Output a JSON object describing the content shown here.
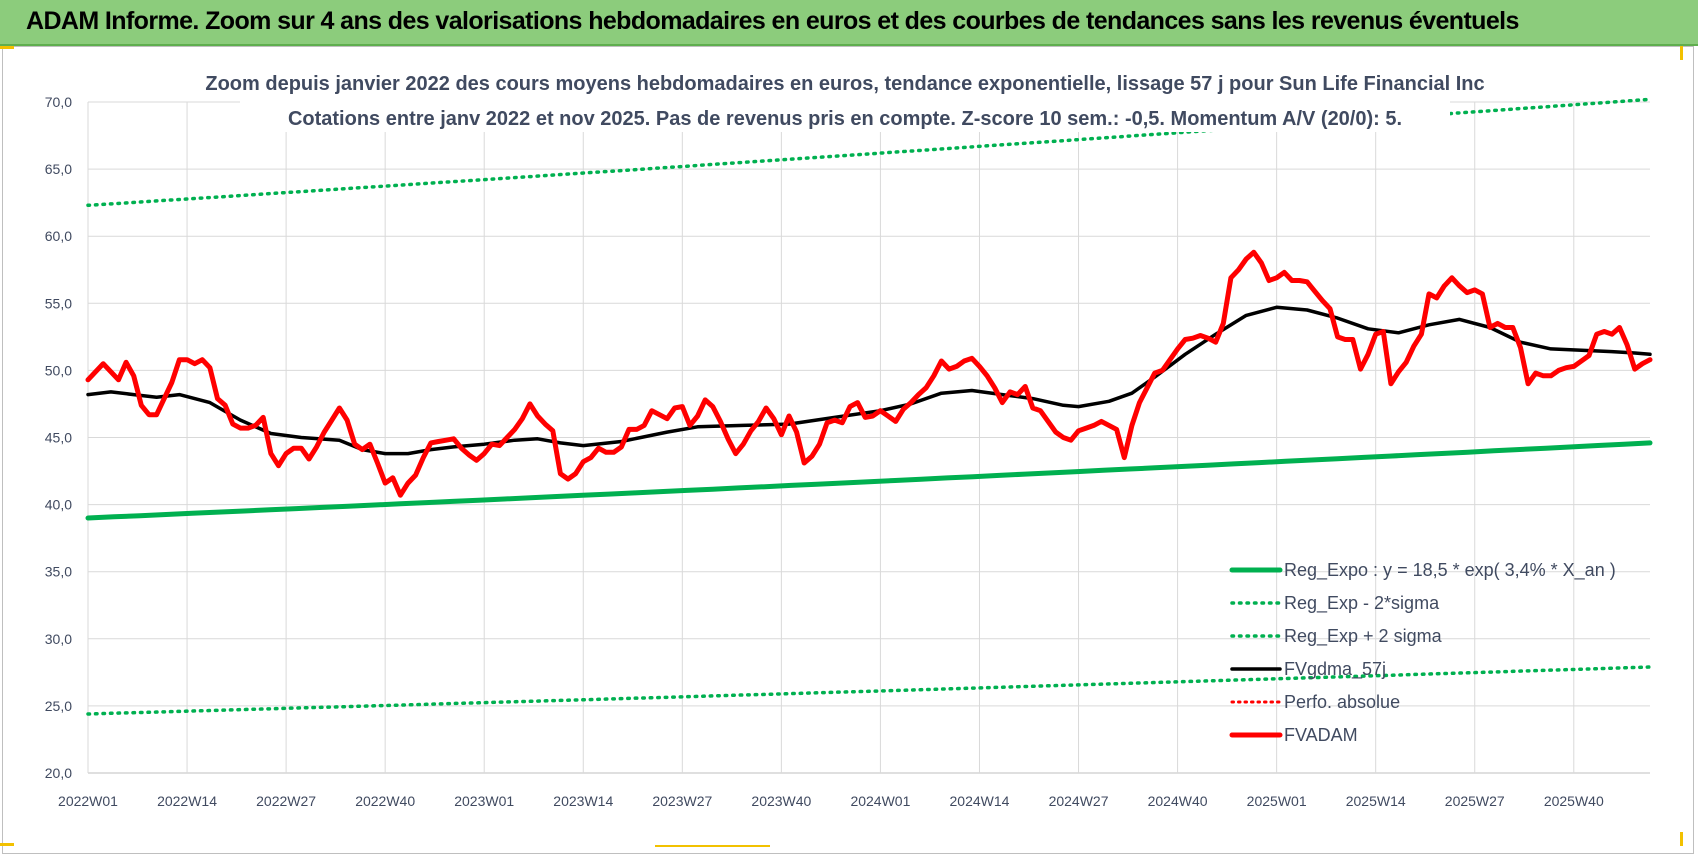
{
  "banner": {
    "title": "ADAM Informe. Zoom sur 4 ans des valorisations hebdomadaires en euros et des courbes de tendances sans les revenus éventuels"
  },
  "colors": {
    "banner_bg": "#8ccc7c",
    "reg_expo": "#00b050",
    "gdma": "#000000",
    "fvadam": "#ff0000",
    "perfo": "#ff0000",
    "grid": "#d9d9d9"
  },
  "chart_data": {
    "type": "line",
    "title": "Zoom depuis janvier 2022 des cours moyens hebdomadaires en euros, tendance exponentielle, lissage 57 j pour Sun Life Financial Inc",
    "subtitle": "Cotations entre janv 2022 et nov 2025. Pas de revenus pris en compte. Z-score 10 sem.: -0,5. Momentum A/V (20/0): 5.",
    "xlabel": "",
    "ylabel": "",
    "ylim": [
      20,
      70
    ],
    "y_ticks": [
      "20,0",
      "25,0",
      "30,0",
      "35,0",
      "40,0",
      "45,0",
      "50,0",
      "55,0",
      "60,0",
      "65,0",
      "70,0"
    ],
    "x_ticks": [
      "2022W01",
      "2022W14",
      "2022W27",
      "2022W40",
      "2023W01",
      "2023W14",
      "2023W27",
      "2023W40",
      "2024W01",
      "2024W14",
      "2024W27",
      "2024W40",
      "2025W01",
      "2025W14",
      "2025W27",
      "2025W40"
    ],
    "x_tick_index": [
      0,
      13,
      26,
      39,
      52,
      65,
      78,
      91,
      104,
      117,
      130,
      143,
      156,
      169,
      182,
      195
    ],
    "n_weeks": 206,
    "grid": true,
    "legend_position": "bottom-right",
    "series": [
      {
        "name": "Reg_Expo : y = 18,5 * exp( 3,4% *  X_an )",
        "style": "solid-thick",
        "x": [
          0,
          205
        ],
        "values": [
          39.0,
          44.6
        ]
      },
      {
        "name": "Reg_Exp - 2*sigma",
        "style": "dotted",
        "x": [
          0,
          205
        ],
        "values": [
          24.4,
          27.9
        ]
      },
      {
        "name": "Reg_Exp + 2 sigma",
        "style": "dotted",
        "x": [
          0,
          205
        ],
        "values": [
          62.3,
          70.2
        ]
      },
      {
        "name": "FVgdma_57j",
        "style": "solid",
        "x": [
          0,
          3,
          6,
          9,
          12,
          16,
          20,
          24,
          28,
          33,
          36,
          39,
          42,
          45,
          48,
          52,
          56,
          59,
          62,
          65,
          70,
          76,
          80,
          86,
          92,
          98,
          104,
          108,
          112,
          116,
          120,
          124,
          128,
          130,
          134,
          137,
          140,
          144,
          148,
          152,
          156,
          160,
          164,
          168,
          172,
          176,
          180,
          184,
          188,
          192,
          196,
          200,
          203,
          205
        ],
        "values": [
          48.2,
          48.4,
          48.2,
          48.0,
          48.2,
          47.6,
          46.3,
          45.3,
          45.0,
          44.8,
          44.1,
          43.8,
          43.8,
          44.1,
          44.3,
          44.5,
          44.8,
          44.9,
          44.6,
          44.4,
          44.7,
          45.4,
          45.8,
          45.9,
          46.0,
          46.5,
          47.0,
          47.5,
          48.3,
          48.5,
          48.2,
          47.9,
          47.4,
          47.3,
          47.7,
          48.3,
          49.5,
          51.2,
          52.7,
          54.1,
          54.7,
          54.5,
          53.9,
          53.1,
          52.8,
          53.4,
          53.8,
          53.2,
          52.1,
          51.6,
          51.5,
          51.4,
          51.3,
          51.2
        ]
      },
      {
        "name": "Perfo. absolue",
        "style": "dotted",
        "x": [],
        "values": []
      },
      {
        "name": "FVADAM",
        "style": "solid-thick",
        "x": [
          0,
          2,
          4,
          5,
          6,
          7,
          8,
          9,
          10,
          11,
          12,
          13,
          14,
          15,
          16,
          17,
          18,
          19,
          20,
          21,
          22,
          23,
          24,
          25,
          26,
          27,
          28,
          29,
          30,
          31,
          32,
          33,
          34,
          35,
          36,
          37,
          38,
          39,
          40,
          41,
          42,
          43,
          44,
          45,
          46,
          47,
          48,
          49,
          50,
          51,
          52,
          53,
          54,
          55,
          56,
          57,
          58,
          59,
          60,
          61,
          62,
          63,
          64,
          65,
          66,
          67,
          68,
          69,
          70,
          71,
          72,
          73,
          74,
          75,
          76,
          77,
          78,
          79,
          80,
          81,
          82,
          83,
          84,
          85,
          86,
          87,
          88,
          89,
          90,
          91,
          92,
          93,
          94,
          95,
          96,
          97,
          98,
          99,
          100,
          101,
          102,
          103,
          104,
          105,
          106,
          107,
          108,
          109,
          110,
          111,
          112,
          113,
          114,
          115,
          116,
          117,
          118,
          119,
          120,
          121,
          122,
          123,
          124,
          125,
          126,
          127,
          128,
          129,
          130,
          131,
          132,
          133,
          134,
          135,
          136,
          137,
          138,
          139,
          140,
          141,
          142,
          143,
          144,
          145,
          146,
          147,
          148,
          149,
          150,
          151,
          152,
          153,
          154,
          155,
          156,
          157,
          158,
          159,
          160,
          161,
          162,
          163,
          164,
          165,
          166,
          167,
          168,
          169,
          170,
          171,
          172,
          173,
          174,
          175,
          176,
          177,
          178,
          179,
          180,
          181,
          182,
          183,
          184,
          185,
          186,
          187,
          188,
          189,
          190,
          191,
          192,
          193,
          194,
          195,
          196,
          197,
          198,
          199,
          200,
          201,
          202,
          203,
          204,
          205
        ],
        "values": [
          49.3,
          50.5,
          49.3,
          50.6,
          49.6,
          47.4,
          46.7,
          46.7,
          47.9,
          49.1,
          50.8,
          50.8,
          50.5,
          50.8,
          50.2,
          47.9,
          47.4,
          46.0,
          45.7,
          45.7,
          45.9,
          46.5,
          43.8,
          42.9,
          43.8,
          44.2,
          44.2,
          43.4,
          44.3,
          45.4,
          46.3,
          47.2,
          46.3,
          44.5,
          44.1,
          44.5,
          43.1,
          41.6,
          42.0,
          40.7,
          41.6,
          42.2,
          43.5,
          44.6,
          44.7,
          44.8,
          44.9,
          44.2,
          43.7,
          43.3,
          43.8,
          44.5,
          44.4,
          45.0,
          45.6,
          46.4,
          47.5,
          46.6,
          46.0,
          45.5,
          42.3,
          41.9,
          42.3,
          43.2,
          43.5,
          44.2,
          43.9,
          43.9,
          44.3,
          45.6,
          45.6,
          45.9,
          47.0,
          46.7,
          46.4,
          47.2,
          47.3,
          45.9,
          46.6,
          47.8,
          47.3,
          46.2,
          44.9,
          43.8,
          44.5,
          45.5,
          46.2,
          47.2,
          46.4,
          45.2,
          46.6,
          45.4,
          43.1,
          43.6,
          44.5,
          46.1,
          46.3,
          46.1,
          47.3,
          47.6,
          46.5,
          46.6,
          47.0,
          46.6,
          46.2,
          47.1,
          47.6,
          48.2,
          48.7,
          49.6,
          50.7,
          50.1,
          50.3,
          50.7,
          50.9,
          50.3,
          49.6,
          48.7,
          47.6,
          48.4,
          48.2,
          48.8,
          47.2,
          47.0,
          46.2,
          45.4,
          45.0,
          44.8,
          45.5,
          45.7,
          45.9,
          46.2,
          45.9,
          45.6,
          43.5,
          45.9,
          47.6,
          48.7,
          49.8,
          50.0,
          50.8,
          51.6,
          52.3,
          52.4,
          52.6,
          52.4,
          52.1,
          53.5,
          56.9,
          57.5,
          58.3,
          58.8,
          58.0,
          56.7,
          56.9,
          57.3,
          56.7,
          56.7,
          56.6,
          55.9,
          55.2,
          54.6,
          52.5,
          52.3,
          52.3,
          50.1,
          51.2,
          52.7,
          52.9,
          49.0,
          49.9,
          50.6,
          51.8,
          52.7,
          55.7,
          55.4,
          56.3,
          56.9,
          56.3,
          55.8,
          56.0,
          55.7,
          53.2,
          53.5,
          53.2,
          53.2,
          51.7,
          49.0,
          49.8,
          49.6,
          49.6,
          50.0,
          50.2,
          50.3,
          50.7,
          51.1,
          52.7,
          52.9,
          52.7,
          53.2,
          51.9,
          50.1,
          50.5,
          50.8
        ]
      }
    ]
  }
}
